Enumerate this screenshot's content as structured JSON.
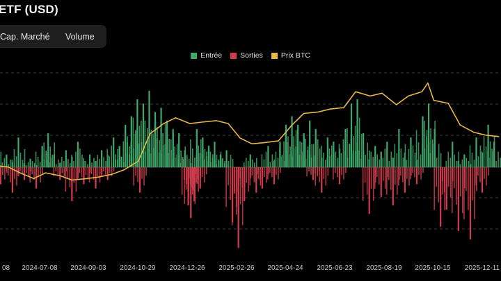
{
  "header": {
    "title": "ETF (USD)"
  },
  "toggle": {
    "options": [
      "Cap. Marché",
      "Volume"
    ]
  },
  "colors": {
    "inflow": "#3fa86b",
    "outflow": "#d23c4d",
    "btc": "#e8b74a",
    "grid": "#3a3a3a",
    "axis_text": "#c8c8c8"
  },
  "chart_data": {
    "type": "bar",
    "legend": [
      "Entrée",
      "Sorties",
      "Prix BTC"
    ],
    "legend_position": "top-center",
    "grid": true,
    "x_tick_labels": [
      "08",
      "2024-07-08",
      "2024-09-03",
      "2024-10-29",
      "2024-12-26",
      "2025-02-26",
      "2025-04-24",
      "2025-06-23",
      "2025-08-19",
      "2025-10-15",
      "2025-12-11"
    ],
    "flows_ylim": [
      -2,
      2
    ],
    "btc_ylim": [
      40000,
      120000
    ],
    "series": [
      {
        "name": "Entrée",
        "x": [
          "2024-05-16",
          "2024-05-30",
          "2024-06-13",
          "2024-06-27",
          "2024-07-11",
          "2024-07-18",
          "2024-07-25",
          "2024-08-08",
          "2024-08-22",
          "2024-09-05",
          "2024-09-19",
          "2024-10-03",
          "2024-10-10",
          "2024-10-17",
          "2024-10-24",
          "2024-10-31",
          "2024-11-07",
          "2024-11-14",
          "2024-11-21",
          "2024-11-28",
          "2024-12-05",
          "2024-12-12",
          "2024-12-19",
          "2024-12-26",
          "2025-01-09",
          "2025-01-16",
          "2025-01-23",
          "2025-01-30",
          "2025-02-06",
          "2025-02-13",
          "2025-03-13",
          "2025-04-03",
          "2025-04-17",
          "2025-04-24",
          "2025-05-01",
          "2025-05-08",
          "2025-05-15",
          "2025-05-22",
          "2025-05-29",
          "2025-06-12",
          "2025-06-19",
          "2025-07-03",
          "2025-07-10",
          "2025-07-17",
          "2025-07-24",
          "2025-08-07",
          "2025-08-21",
          "2025-09-04",
          "2025-09-18",
          "2025-10-02",
          "2025-10-09",
          "2025-10-16",
          "2025-11-06",
          "2025-11-20",
          "2025-12-04",
          "2025-12-18",
          "2025-12-25"
        ],
        "values": [
          0.5,
          0.3,
          0.7,
          0.2,
          0.5,
          0.8,
          0.3,
          0.4,
          0.6,
          0.3,
          0.4,
          0.7,
          0.5,
          1.0,
          1.2,
          1.6,
          1.5,
          1.8,
          1.3,
          1.4,
          1.1,
          0.9,
          0.8,
          0.4,
          0.9,
          0.7,
          0.5,
          0.6,
          0.3,
          0.4,
          0.3,
          0.5,
          0.6,
          1.0,
          1.2,
          1.0,
          0.8,
          1.1,
          0.9,
          0.7,
          0.6,
          0.9,
          1.5,
          1.6,
          0.8,
          0.5,
          0.6,
          0.9,
          0.7,
          1.2,
          1.5,
          0.9,
          0.6,
          0.3,
          0.7,
          1.0,
          0.6
        ]
      },
      {
        "name": "Sorties",
        "x": [
          "2024-05-23",
          "2024-06-06",
          "2024-06-20",
          "2024-07-04",
          "2024-08-01",
          "2024-08-15",
          "2024-08-29",
          "2024-09-12",
          "2024-09-26",
          "2024-11-03",
          "2024-12-30",
          "2025-01-02",
          "2025-01-06",
          "2025-01-13",
          "2025-02-20",
          "2025-02-27",
          "2025-03-06",
          "2025-03-20",
          "2025-03-27",
          "2025-04-10",
          "2025-05-26",
          "2025-06-05",
          "2025-06-26",
          "2025-07-31",
          "2025-08-14",
          "2025-08-28",
          "2025-09-11",
          "2025-09-25",
          "2025-10-23",
          "2025-10-30",
          "2025-11-13",
          "2025-11-27",
          "2025-12-11"
        ],
        "values": [
          -0.4,
          -0.6,
          -0.3,
          -0.5,
          -0.3,
          -0.8,
          -0.4,
          -0.5,
          -0.3,
          -0.6,
          -0.9,
          -1.2,
          -0.8,
          -0.5,
          -1.3,
          -1.9,
          -0.8,
          -0.6,
          -0.5,
          -0.4,
          -0.3,
          -0.6,
          -0.4,
          -1.1,
          -0.7,
          -0.9,
          -0.6,
          -0.4,
          -1.4,
          -1.0,
          -1.5,
          -1.7,
          -0.6
        ]
      },
      {
        "name": "Prix BTC",
        "x": [
          "2024-05-16",
          "2024-06-01",
          "2024-06-15",
          "2024-07-01",
          "2024-07-15",
          "2024-08-01",
          "2024-08-15",
          "2024-09-01",
          "2024-09-15",
          "2024-10-01",
          "2024-10-15",
          "2024-11-01",
          "2024-11-15",
          "2024-12-01",
          "2024-12-15",
          "2025-01-01",
          "2025-01-15",
          "2025-02-01",
          "2025-02-15",
          "2025-03-01",
          "2025-03-15",
          "2025-04-01",
          "2025-04-15",
          "2025-05-01",
          "2025-05-15",
          "2025-06-01",
          "2025-06-15",
          "2025-07-01",
          "2025-07-15",
          "2025-08-01",
          "2025-08-15",
          "2025-09-01",
          "2025-09-15",
          "2025-10-01",
          "2025-10-08",
          "2025-10-15",
          "2025-11-01",
          "2025-11-15",
          "2025-12-01",
          "2025-12-15",
          "2025-12-31"
        ],
        "values": [
          67000,
          66000,
          62000,
          58000,
          62000,
          60000,
          57000,
          58000,
          59000,
          61000,
          64000,
          70000,
          89000,
          96000,
          100000,
          96000,
          97000,
          98000,
          96000,
          86000,
          82000,
          83000,
          84000,
          95000,
          103000,
          104000,
          106000,
          107000,
          118000,
          115000,
          117000,
          109000,
          115000,
          118000,
          124000,
          112000,
          110000,
          95000,
          90000,
          88000,
          87000
        ]
      }
    ]
  }
}
